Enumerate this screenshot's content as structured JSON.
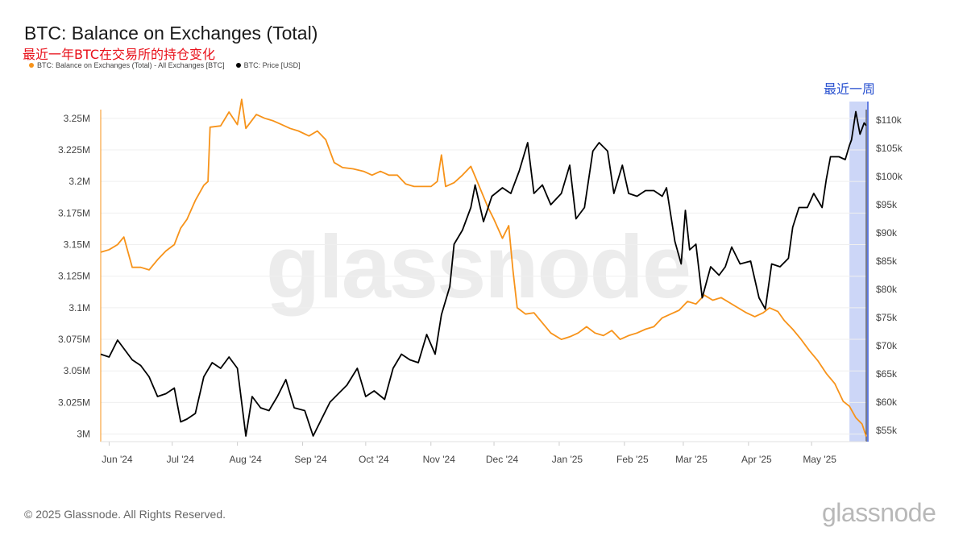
{
  "header": {
    "title": "BTC: Balance on Exchanges (Total)",
    "subtitle": "最近一年BTC在交易所的持仓变化",
    "legend": [
      {
        "label": "BTC: Balance on Exchanges (Total) - All Exchanges [BTC]",
        "color": "#f7931a"
      },
      {
        "label": "BTC: Price [USD]",
        "color": "#000000"
      }
    ]
  },
  "annotation": {
    "recent_week_label": "最近一周",
    "highlight_color": "#c9d4f7"
  },
  "footer": {
    "copyright": "© 2025 Glassnode. All Rights Reserved.",
    "brand": "glassnode",
    "watermark": "glassnode"
  },
  "chart_data": {
    "type": "line",
    "x_tick_labels": [
      "Jun '24",
      "Jul '24",
      "Aug '24",
      "Sep '24",
      "Oct '24",
      "Nov '24",
      "Dec '24",
      "Jan '25",
      "Feb '25",
      "Mar '25",
      "Apr '25",
      "May '25"
    ],
    "x_range": [
      "2024-05-28",
      "2025-05-27"
    ],
    "highlight_range": [
      "2025-05-19",
      "2025-05-27"
    ],
    "y_left": {
      "ticks": [
        "3M",
        "3.025M",
        "3.05M",
        "3.075M",
        "3.1M",
        "3.125M",
        "3.15M",
        "3.175M",
        "3.2M",
        "3.225M",
        "3.25M"
      ],
      "range": [
        2994000,
        3262000
      ]
    },
    "y_right": {
      "ticks": [
        "$55k",
        "$60k",
        "$65k",
        "$70k",
        "$75k",
        "$80k",
        "$85k",
        "$90k",
        "$95k",
        "$100k",
        "$105k",
        "$110k"
      ],
      "range": [
        53000,
        113000
      ],
      "scale": "linear"
    },
    "series": [
      {
        "name": "BTC: Balance on Exchanges (Total) - All Exchanges [BTC]",
        "color": "#f7931a",
        "axis": "left",
        "points": [
          [
            "2024-05-28",
            3144000
          ],
          [
            "2024-06-01",
            3146000
          ],
          [
            "2024-06-05",
            3150000
          ],
          [
            "2024-06-08",
            3156000
          ],
          [
            "2024-06-12",
            3132000
          ],
          [
            "2024-06-16",
            3132000
          ],
          [
            "2024-06-20",
            3130000
          ],
          [
            "2024-06-24",
            3138000
          ],
          [
            "2024-06-28",
            3145000
          ],
          [
            "2024-07-02",
            3150000
          ],
          [
            "2024-07-05",
            3163000
          ],
          [
            "2024-07-08",
            3170000
          ],
          [
            "2024-07-12",
            3185000
          ],
          [
            "2024-07-16",
            3197000
          ],
          [
            "2024-07-18",
            3200000
          ],
          [
            "2024-07-19",
            3243000
          ],
          [
            "2024-07-24",
            3244000
          ],
          [
            "2024-07-28",
            3255000
          ],
          [
            "2024-08-01",
            3245000
          ],
          [
            "2024-08-03",
            3265000
          ],
          [
            "2024-08-05",
            3242000
          ],
          [
            "2024-08-10",
            3253000
          ],
          [
            "2024-08-14",
            3250000
          ],
          [
            "2024-08-18",
            3248000
          ],
          [
            "2024-08-22",
            3245000
          ],
          [
            "2024-08-26",
            3242000
          ],
          [
            "2024-08-30",
            3240000
          ],
          [
            "2024-09-04",
            3236000
          ],
          [
            "2024-09-08",
            3240000
          ],
          [
            "2024-09-12",
            3233000
          ],
          [
            "2024-09-16",
            3215000
          ],
          [
            "2024-09-20",
            3211000
          ],
          [
            "2024-09-25",
            3210000
          ],
          [
            "2024-09-30",
            3208000
          ],
          [
            "2024-10-04",
            3205000
          ],
          [
            "2024-10-08",
            3208000
          ],
          [
            "2024-10-12",
            3205000
          ],
          [
            "2024-10-16",
            3205000
          ],
          [
            "2024-10-20",
            3198000
          ],
          [
            "2024-10-24",
            3196000
          ],
          [
            "2024-10-28",
            3196000
          ],
          [
            "2024-11-01",
            3196000
          ],
          [
            "2024-11-04",
            3200000
          ],
          [
            "2024-11-06",
            3221000
          ],
          [
            "2024-11-08",
            3196000
          ],
          [
            "2024-11-12",
            3199000
          ],
          [
            "2024-11-16",
            3205000
          ],
          [
            "2024-11-20",
            3212000
          ],
          [
            "2024-11-24",
            3196000
          ],
          [
            "2024-11-28",
            3180000
          ],
          [
            "2024-12-01",
            3170000
          ],
          [
            "2024-12-05",
            3155000
          ],
          [
            "2024-12-08",
            3165000
          ],
          [
            "2024-12-10",
            3130000
          ],
          [
            "2024-12-12",
            3100000
          ],
          [
            "2024-12-16",
            3095000
          ],
          [
            "2024-12-20",
            3096000
          ],
          [
            "2024-12-24",
            3088000
          ],
          [
            "2024-12-28",
            3080000
          ],
          [
            "2025-01-02",
            3075000
          ],
          [
            "2025-01-06",
            3077000
          ],
          [
            "2025-01-10",
            3080000
          ],
          [
            "2025-01-14",
            3085000
          ],
          [
            "2025-01-18",
            3080000
          ],
          [
            "2025-01-22",
            3078000
          ],
          [
            "2025-01-26",
            3082000
          ],
          [
            "2025-01-30",
            3075000
          ],
          [
            "2025-02-03",
            3078000
          ],
          [
            "2025-02-07",
            3080000
          ],
          [
            "2025-02-11",
            3083000
          ],
          [
            "2025-02-15",
            3085000
          ],
          [
            "2025-02-19",
            3092000
          ],
          [
            "2025-02-23",
            3095000
          ],
          [
            "2025-02-27",
            3098000
          ],
          [
            "2025-03-03",
            3105000
          ],
          [
            "2025-03-07",
            3103000
          ],
          [
            "2025-03-11",
            3110000
          ],
          [
            "2025-03-15",
            3106000
          ],
          [
            "2025-03-19",
            3108000
          ],
          [
            "2025-03-23",
            3104000
          ],
          [
            "2025-03-27",
            3100000
          ],
          [
            "2025-03-31",
            3096000
          ],
          [
            "2025-04-04",
            3093000
          ],
          [
            "2025-04-08",
            3096000
          ],
          [
            "2025-04-11",
            3100000
          ],
          [
            "2025-04-15",
            3097000
          ],
          [
            "2025-04-18",
            3090000
          ],
          [
            "2025-04-22",
            3083000
          ],
          [
            "2025-04-26",
            3075000
          ],
          [
            "2025-04-30",
            3066000
          ],
          [
            "2025-05-04",
            3058000
          ],
          [
            "2025-05-08",
            3048000
          ],
          [
            "2025-05-12",
            3040000
          ],
          [
            "2025-05-16",
            3026000
          ],
          [
            "2025-05-19",
            3022000
          ],
          [
            "2025-05-22",
            3013000
          ],
          [
            "2025-05-25",
            3008000
          ],
          [
            "2025-05-27",
            2998000
          ]
        ]
      },
      {
        "name": "BTC: Price [USD]",
        "color": "#000000",
        "axis": "right",
        "points": [
          [
            "2024-05-28",
            68500
          ],
          [
            "2024-06-01",
            68000
          ],
          [
            "2024-06-05",
            71000
          ],
          [
            "2024-06-08",
            69500
          ],
          [
            "2024-06-12",
            67500
          ],
          [
            "2024-06-16",
            66500
          ],
          [
            "2024-06-20",
            64500
          ],
          [
            "2024-06-24",
            61000
          ],
          [
            "2024-06-28",
            61500
          ],
          [
            "2024-07-02",
            62500
          ],
          [
            "2024-07-05",
            56500
          ],
          [
            "2024-07-08",
            57000
          ],
          [
            "2024-07-12",
            58000
          ],
          [
            "2024-07-16",
            64500
          ],
          [
            "2024-07-20",
            67000
          ],
          [
            "2024-07-24",
            66000
          ],
          [
            "2024-07-28",
            68000
          ],
          [
            "2024-08-01",
            66000
          ],
          [
            "2024-08-05",
            54000
          ],
          [
            "2024-08-08",
            61000
          ],
          [
            "2024-08-12",
            59000
          ],
          [
            "2024-08-16",
            58500
          ],
          [
            "2024-08-20",
            61000
          ],
          [
            "2024-08-24",
            64000
          ],
          [
            "2024-08-28",
            59000
          ],
          [
            "2024-09-02",
            58500
          ],
          [
            "2024-09-06",
            54000
          ],
          [
            "2024-09-10",
            57000
          ],
          [
            "2024-09-14",
            60000
          ],
          [
            "2024-09-18",
            61500
          ],
          [
            "2024-09-22",
            63000
          ],
          [
            "2024-09-27",
            66000
          ],
          [
            "2024-10-01",
            61000
          ],
          [
            "2024-10-05",
            62000
          ],
          [
            "2024-10-10",
            60500
          ],
          [
            "2024-10-14",
            66000
          ],
          [
            "2024-10-18",
            68500
          ],
          [
            "2024-10-22",
            67500
          ],
          [
            "2024-10-26",
            67000
          ],
          [
            "2024-10-30",
            72000
          ],
          [
            "2024-11-03",
            68500
          ],
          [
            "2024-11-06",
            75500
          ],
          [
            "2024-11-10",
            80500
          ],
          [
            "2024-11-12",
            88000
          ],
          [
            "2024-11-16",
            90500
          ],
          [
            "2024-11-20",
            94500
          ],
          [
            "2024-11-22",
            98500
          ],
          [
            "2024-11-26",
            92000
          ],
          [
            "2024-11-30",
            96500
          ],
          [
            "2024-12-05",
            98000
          ],
          [
            "2024-12-09",
            97000
          ],
          [
            "2024-12-13",
            101000
          ],
          [
            "2024-12-17",
            106000
          ],
          [
            "2024-12-20",
            97000
          ],
          [
            "2024-12-24",
            98500
          ],
          [
            "2024-12-28",
            95000
          ],
          [
            "2025-01-02",
            97000
          ],
          [
            "2025-01-06",
            102000
          ],
          [
            "2025-01-09",
            92500
          ],
          [
            "2025-01-13",
            94500
          ],
          [
            "2025-01-17",
            104500
          ],
          [
            "2025-01-20",
            106000
          ],
          [
            "2025-01-24",
            104500
          ],
          [
            "2025-01-27",
            97000
          ],
          [
            "2025-01-31",
            102000
          ],
          [
            "2025-02-03",
            97000
          ],
          [
            "2025-02-07",
            96500
          ],
          [
            "2025-02-11",
            97500
          ],
          [
            "2025-02-15",
            97500
          ],
          [
            "2025-02-19",
            96500
          ],
          [
            "2025-02-21",
            98000
          ],
          [
            "2025-02-25",
            88500
          ],
          [
            "2025-02-28",
            84500
          ],
          [
            "2025-03-02",
            94000
          ],
          [
            "2025-03-04",
            87000
          ],
          [
            "2025-03-07",
            88000
          ],
          [
            "2025-03-10",
            78500
          ],
          [
            "2025-03-14",
            84000
          ],
          [
            "2025-03-18",
            82500
          ],
          [
            "2025-03-21",
            84000
          ],
          [
            "2025-03-24",
            87500
          ],
          [
            "2025-03-28",
            84500
          ],
          [
            "2025-04-02",
            85000
          ],
          [
            "2025-04-06",
            78500
          ],
          [
            "2025-04-09",
            76500
          ],
          [
            "2025-04-12",
            84500
          ],
          [
            "2025-04-16",
            84000
          ],
          [
            "2025-04-20",
            85500
          ],
          [
            "2025-04-22",
            91000
          ],
          [
            "2025-04-25",
            94500
          ],
          [
            "2025-04-29",
            94500
          ],
          [
            "2025-05-02",
            97000
          ],
          [
            "2025-05-06",
            94500
          ],
          [
            "2025-05-08",
            99500
          ],
          [
            "2025-05-10",
            103500
          ],
          [
            "2025-05-14",
            103500
          ],
          [
            "2025-05-17",
            103000
          ],
          [
            "2025-05-19",
            105500
          ],
          [
            "2025-05-20",
            106500
          ],
          [
            "2025-05-22",
            111500
          ],
          [
            "2025-05-24",
            107500
          ],
          [
            "2025-05-26",
            109500
          ],
          [
            "2025-05-27",
            109000
          ]
        ]
      }
    ],
    "grid": true,
    "legend_position": "top-left"
  }
}
